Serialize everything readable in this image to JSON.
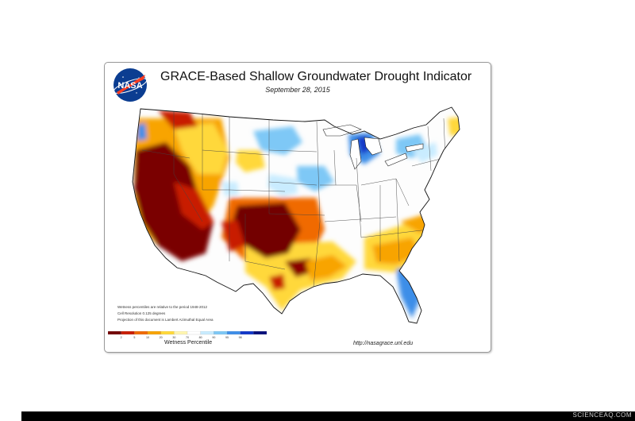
{
  "header": {
    "logo_text": "NASA",
    "title": "GRACE-Based Shallow Groundwater Drought Indicator",
    "date": "September 28, 2015"
  },
  "notes": [
    "Wetness percentiles are relative to the period 1948-2012",
    "Cell Resolution 0.125 degrees",
    "Projection of this document is Lambert Azimuthal Equal Area"
  ],
  "legend": {
    "title": "Wetness Percentile",
    "ticks": [
      "2",
      "5",
      "10",
      "20",
      "30",
      "70",
      "80",
      "90",
      "95",
      "98"
    ],
    "colors": [
      "#730000",
      "#c81e00",
      "#f06a00",
      "#f8a400",
      "#ffd83a",
      "#fff6b0",
      "#ffffff",
      "#c9ecff",
      "#7ec8f6",
      "#3e8ee8",
      "#1238c8",
      "#08107c"
    ]
  },
  "source_url": "http://nasagrace.unl.edu",
  "watermark": "SCIENCEAQ.COM"
}
